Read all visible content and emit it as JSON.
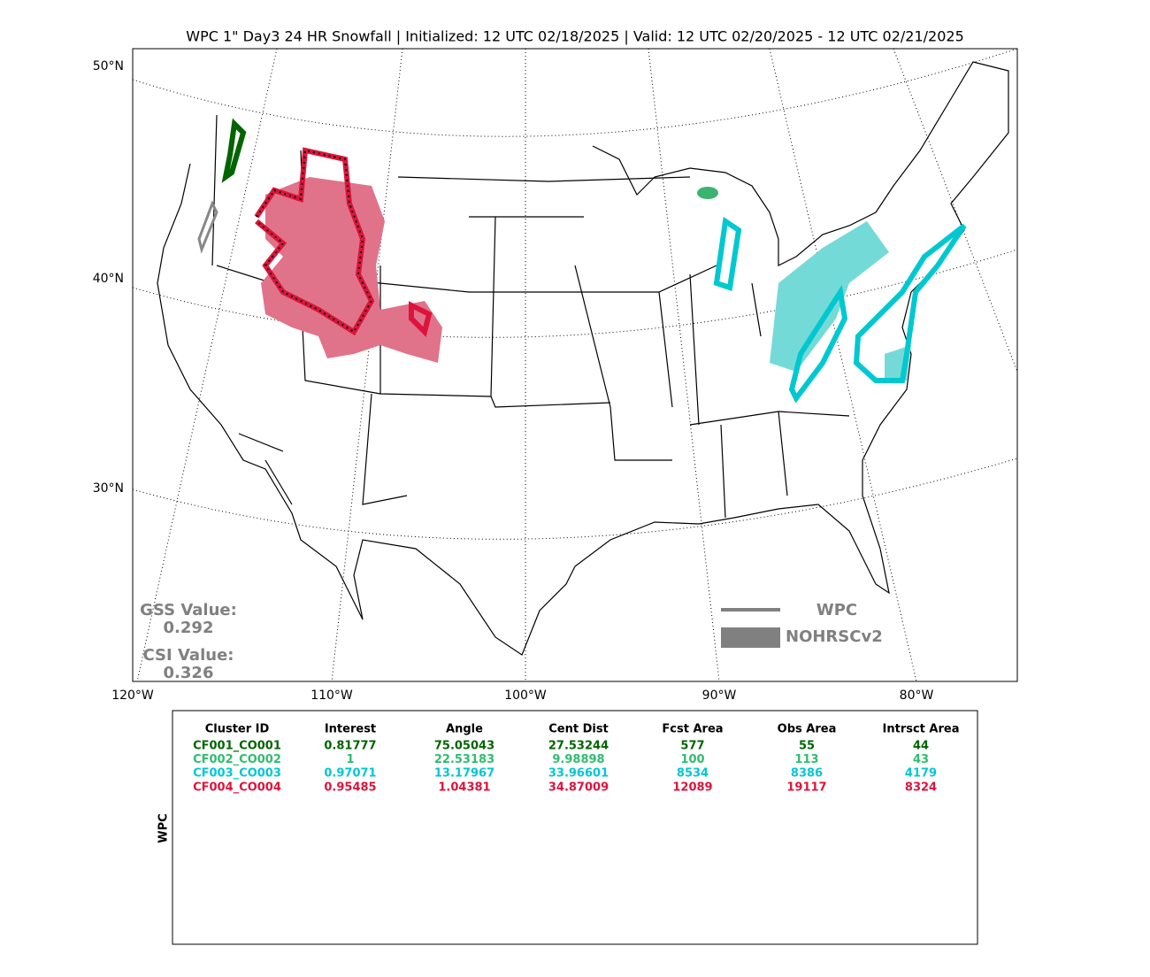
{
  "title": "WPC 1\" Day3 24 HR Snowfall | Initialized: 12 UTC 02/18/2025 | Valid: 12 UTC 02/20/2025 - 12 UTC 02/21/2025",
  "map": {
    "lat_labels": [
      "50°N",
      "40°N",
      "30°N"
    ],
    "lon_labels": [
      "120°W",
      "110°W",
      "100°W",
      "90°W",
      "80°W"
    ],
    "scores": {
      "gss_label": "GSS Value:",
      "gss": "0.292",
      "csi_label": "CSI Value:",
      "csi": "0.326"
    },
    "legend": [
      {
        "name": "WPC"
      },
      {
        "name": "NOHRSCv2"
      }
    ]
  },
  "table": {
    "side_label": "WPC",
    "columns": [
      "Cluster ID",
      "Interest",
      "Angle",
      "Cent Dist",
      "Fcst Area",
      "Obs Area",
      "Intrsct Area"
    ],
    "rows": [
      {
        "color": "#006400",
        "cells": [
          "CF001_CO001",
          "0.81777",
          "75.05043",
          "27.53244",
          "577",
          "55",
          "44"
        ]
      },
      {
        "color": "#2ebd6e",
        "cells": [
          "CF002_CO002",
          "1",
          "22.53183",
          "9.98898",
          "100",
          "113",
          "43"
        ]
      },
      {
        "color": "#00c8d0",
        "cells": [
          "CF003_CO003",
          "0.97071",
          "13.17967",
          "33.96601",
          "8534",
          "8386",
          "4179"
        ]
      },
      {
        "color": "#dc143c",
        "cells": [
          "CF004_CO004",
          "0.95485",
          "1.04381",
          "34.87009",
          "12089",
          "19117",
          "8324"
        ]
      }
    ]
  }
}
